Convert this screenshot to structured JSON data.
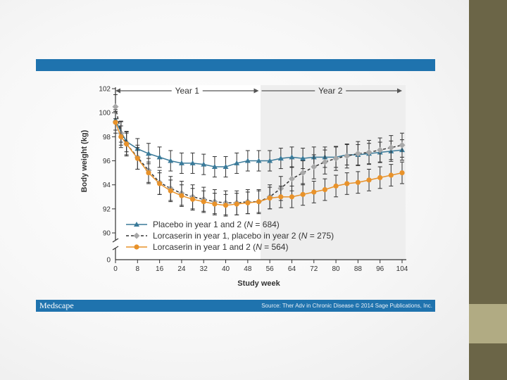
{
  "footer": {
    "logo": "Medscape",
    "source": "Source: Ther Adv in Chronic Disease © 2014 Sage Publications, Inc."
  },
  "colors": {
    "placebo": "#3a7a99",
    "switch": "#a8a8a8",
    "lorcaserin": "#e8922a",
    "bar": "#1f73ae",
    "errorbar": "#333333"
  },
  "chart_data": {
    "type": "line",
    "xlabel": "Study week",
    "ylabel": "Body weight (kg)",
    "x_ticks": [
      0,
      8,
      16,
      24,
      32,
      40,
      48,
      56,
      64,
      72,
      80,
      88,
      96,
      104
    ],
    "y_ticks": [
      90,
      92,
      94,
      96,
      98,
      100,
      102
    ],
    "ylim": [
      90,
      102
    ],
    "xlim": [
      0,
      104
    ],
    "y_axis_break": true,
    "periods": [
      {
        "label": "Year 1",
        "start": 0,
        "end": 52
      },
      {
        "label": "Year 2",
        "start": 52,
        "end": 104
      }
    ],
    "x": [
      0,
      2,
      4,
      8,
      12,
      16,
      20,
      24,
      28,
      32,
      36,
      40,
      44,
      48,
      52,
      56,
      60,
      64,
      68,
      72,
      76,
      80,
      84,
      88,
      92,
      96,
      100,
      104
    ],
    "series": [
      {
        "name_prefix": "Placebo in year 1 and 2 (",
        "n_label": "N",
        "n_value": " = 684)",
        "marker": "triangle",
        "color_key": "placebo",
        "dash": "solid",
        "values": [
          99.4,
          98.4,
          97.6,
          97.0,
          96.6,
          96.3,
          96.0,
          95.8,
          95.8,
          95.7,
          95.5,
          95.5,
          95.8,
          96.0,
          96.0,
          96.0,
          96.2,
          96.3,
          96.2,
          96.3,
          96.3,
          96.3,
          96.5,
          96.5,
          96.6,
          96.7,
          96.8,
          96.9
        ],
        "error": 0.85
      },
      {
        "name_prefix": "Lorcaserin in year 1, placebo in year 2 (",
        "n_label": "N",
        "n_value": " = 275)",
        "marker": "diamond",
        "color_key": "switch",
        "dash": "dashed",
        "values": [
          100.5,
          98.3,
          97.4,
          96.3,
          95.2,
          94.2,
          93.7,
          93.3,
          93.0,
          92.8,
          92.6,
          92.5,
          92.5,
          92.6,
          92.6,
          93.0,
          93.7,
          94.5,
          95.0,
          95.5,
          95.9,
          96.2,
          96.4,
          96.6,
          96.7,
          96.9,
          97.1,
          97.3
        ],
        "error": 1.0
      },
      {
        "name_prefix": "Lorcaserin in year 1 and 2 (",
        "n_label": "N",
        "n_value": " = 564)",
        "marker": "circle",
        "color_key": "lorcaserin",
        "dash": "solid",
        "values": [
          99.2,
          98.0,
          97.4,
          96.2,
          95.0,
          94.1,
          93.5,
          93.1,
          92.8,
          92.6,
          92.4,
          92.3,
          92.4,
          92.5,
          92.6,
          92.9,
          93.0,
          93.0,
          93.2,
          93.4,
          93.6,
          93.9,
          94.1,
          94.2,
          94.4,
          94.6,
          94.8,
          95.0
        ],
        "error": 0.9
      }
    ]
  }
}
